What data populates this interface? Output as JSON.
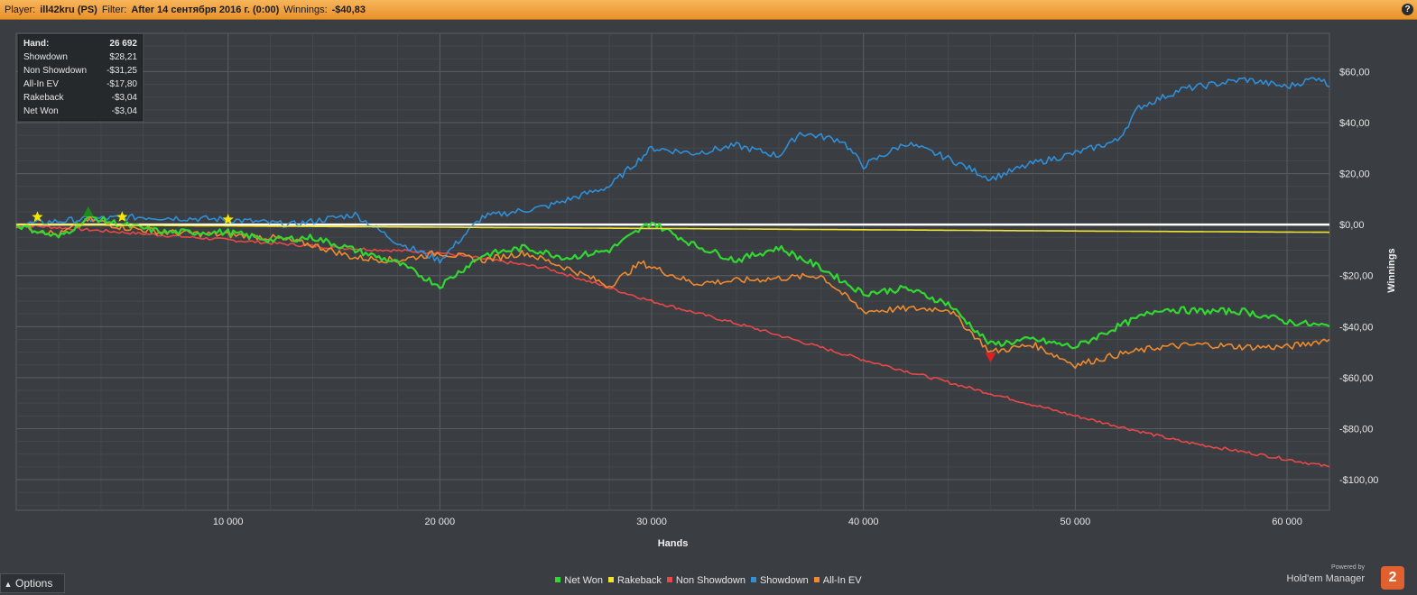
{
  "titlebar": {
    "player_label": "Player:",
    "player_value": "ill42kru (PS)",
    "filter_label": "Filter:",
    "filter_value": "After 14 сентября 2016 г. (0:00)",
    "winnings_label": "Winnings:",
    "winnings_value": "-$40,83",
    "help": "?"
  },
  "stats": [
    {
      "label": "Hand:",
      "value": "26 692"
    },
    {
      "label": "Showdown",
      "value": "$28,21"
    },
    {
      "label": "Non Showdown",
      "value": "-$31,25"
    },
    {
      "label": "All-In EV",
      "value": "-$17,80"
    },
    {
      "label": "Rakeback",
      "value": "-$3,04"
    },
    {
      "label": "Net Won",
      "value": "-$3,04"
    }
  ],
  "options_label": "Options",
  "logo": {
    "powered_by": "Powered by",
    "name": "Hold'em Manager",
    "badge": "2"
  },
  "colors": {
    "net_won": "#32d732",
    "rakeback": "#f0e430",
    "non_showdown": "#e84848",
    "showdown": "#2f8fd8",
    "allin_ev": "#f08a30",
    "zero_line": "#ffffff",
    "background": "#3a3d41",
    "grid": "#4e5257"
  },
  "chart_data": {
    "type": "line",
    "xlabel": "Hands",
    "ylabel": "Winnings",
    "xlim": [
      0,
      62000
    ],
    "ylim": [
      -112,
      75
    ],
    "x_ticks": [
      10000,
      20000,
      30000,
      40000,
      50000,
      60000
    ],
    "x_tick_labels": [
      "10 000",
      "20 000",
      "30 000",
      "40 000",
      "50 000",
      "60 000"
    ],
    "y_ticks": [
      60,
      40,
      20,
      0,
      -20,
      -40,
      -60,
      -80,
      -100
    ],
    "y_tick_labels": [
      "$60,00",
      "$40,00",
      "$20,00",
      "$0,00",
      "-$20,00",
      "-$40,00",
      "-$60,00",
      "-$80,00",
      "-$100,00"
    ],
    "legend_position": "bottom-center",
    "grid": true,
    "series": [
      {
        "name": "Net Won",
        "color": "#32d732",
        "x": [
          0,
          2000,
          3500,
          5000,
          7000,
          10000,
          12000,
          14000,
          16000,
          18000,
          20000,
          22000,
          24000,
          26000,
          28000,
          30000,
          32000,
          34000,
          36000,
          38000,
          40000,
          42000,
          44000,
          46000,
          48000,
          50000,
          52000,
          54000,
          56000,
          58000,
          60000,
          62000
        ],
        "y": [
          0,
          -5,
          3,
          0,
          -3,
          -3,
          -6,
          -5,
          -10,
          -15,
          -24,
          -12,
          -9,
          -13,
          -10,
          1,
          -8,
          -14,
          -9,
          -17,
          -27,
          -25,
          -31,
          -47,
          -45,
          -48,
          -40,
          -33,
          -34,
          -34,
          -38,
          -40
        ]
      },
      {
        "name": "Rakeback",
        "color": "#f0e430",
        "x": [
          0,
          10000,
          20000,
          30000,
          40000,
          50000,
          62000
        ],
        "y": [
          0,
          -0.5,
          -1,
          -1.5,
          -2,
          -2.5,
          -3
        ]
      },
      {
        "name": "Non Showdown",
        "color": "#e84848",
        "x": [
          0,
          5000,
          10000,
          15000,
          20000,
          25000,
          30000,
          35000,
          40000,
          45000,
          50000,
          55000,
          60000,
          62000
        ],
        "y": [
          0,
          -3,
          -6,
          -9,
          -11,
          -17,
          -30,
          -41,
          -53,
          -64,
          -75,
          -85,
          -92,
          -95
        ]
      },
      {
        "name": "Showdown",
        "color": "#2f8fd8",
        "x": [
          0,
          3000,
          6000,
          10000,
          13000,
          16000,
          18000,
          20000,
          22000,
          25000,
          28000,
          30000,
          32000,
          34000,
          36000,
          37000,
          39000,
          40000,
          42000,
          44000,
          46000,
          48000,
          50000,
          52000,
          53000,
          55000,
          58000,
          60000,
          61500,
          62000
        ],
        "y": [
          0,
          2,
          3,
          2,
          0,
          4,
          -7,
          -14,
          3,
          7,
          15,
          30,
          28,
          31,
          27,
          36,
          33,
          23,
          32,
          26,
          18,
          24,
          28,
          33,
          46,
          53,
          57,
          54,
          58,
          54
        ]
      },
      {
        "name": "All-In EV",
        "color": "#f08a30",
        "x": [
          0,
          2000,
          3500,
          5000,
          7000,
          10000,
          12000,
          14000,
          16000,
          18000,
          20000,
          22000,
          24000,
          26000,
          28000,
          29500,
          32000,
          34000,
          36000,
          38000,
          40000,
          42000,
          44000,
          46000,
          48000,
          50000,
          52000,
          54000,
          56000,
          58000,
          60000,
          62000
        ],
        "y": [
          0,
          -4,
          2,
          -1,
          -3,
          -4,
          -5,
          -8,
          -13,
          -14,
          -11,
          -14,
          -11,
          -17,
          -24,
          -15,
          -23,
          -22,
          -21,
          -20,
          -34,
          -33,
          -33,
          -50,
          -47,
          -55,
          -51,
          -48,
          -47,
          -48,
          -48,
          -45
        ]
      }
    ],
    "markers": [
      {
        "type": "star",
        "color": "#f5e800",
        "x": 1000,
        "y": 3
      },
      {
        "type": "star",
        "color": "#f5e800",
        "x": 5000,
        "y": 3
      },
      {
        "type": "star",
        "color": "#f5e800",
        "x": 10000,
        "y": 2
      },
      {
        "type": "triangle-up",
        "color": "#1e8a1e",
        "x": 3400,
        "y": 5
      },
      {
        "type": "triangle-down",
        "color": "#e02020",
        "x": 46000,
        "y": -52
      }
    ]
  }
}
